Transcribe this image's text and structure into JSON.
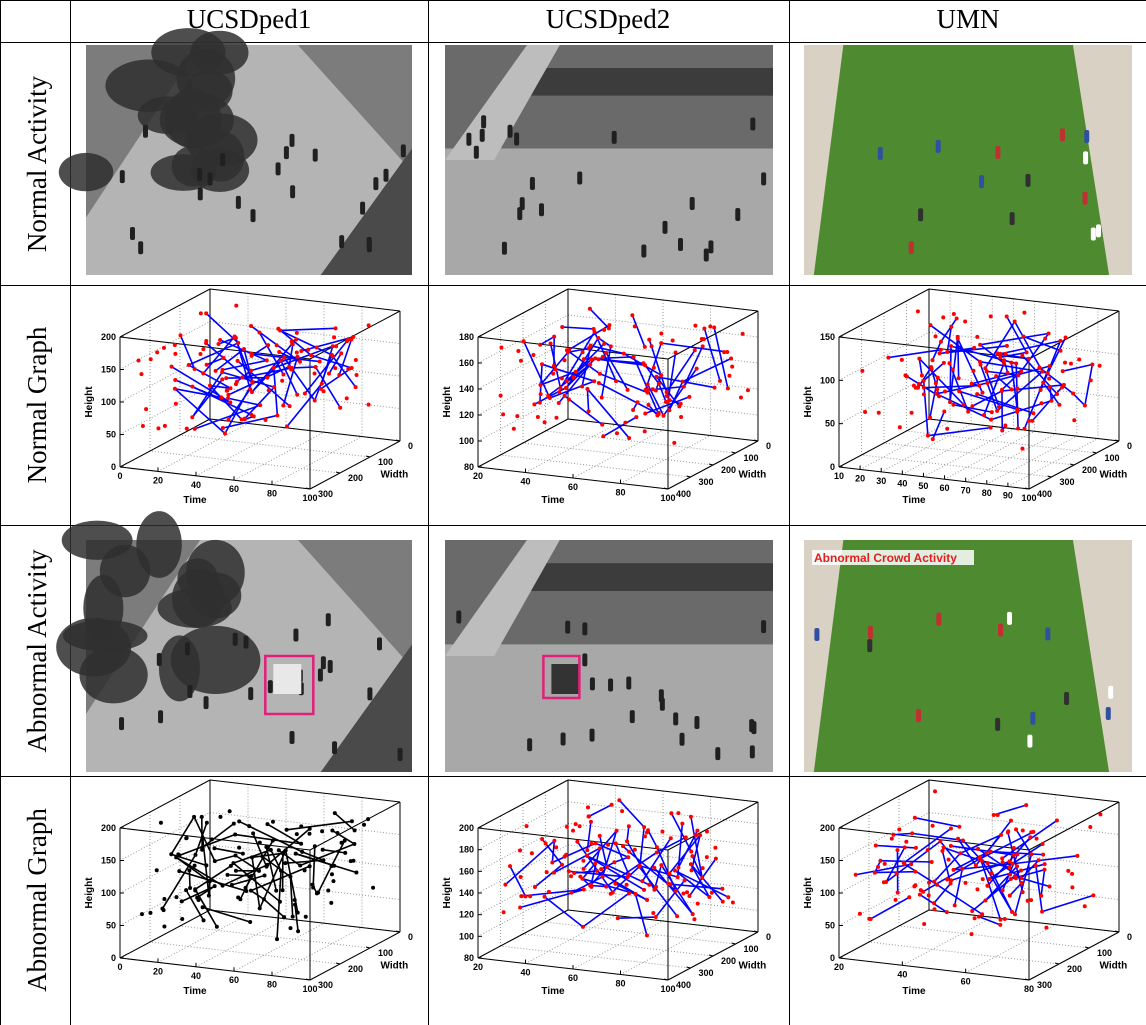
{
  "header": {
    "columns": [
      "UCSDped1",
      "UCSDped2",
      "UMN"
    ]
  },
  "rows": [
    "Normal Activity",
    "Normal Graph",
    "Abnormal Activity",
    "Abnormal Graph"
  ],
  "annotation": "Abnormal Crowd Activity",
  "graphs": {
    "normal": [
      {
        "x_label": "Time",
        "y_label": "Width",
        "z_label": "Height",
        "xticks": [
          0,
          20,
          40,
          60,
          80,
          100
        ],
        "yticks": [
          0,
          100,
          200,
          300
        ],
        "zticks": [
          0,
          50,
          100,
          150,
          200
        ],
        "point_color": "#ff0000",
        "line_color": "#0000ff"
      },
      {
        "x_label": "Time",
        "y_label": "Width",
        "z_label": "Height",
        "xticks": [
          20,
          40,
          60,
          80,
          100
        ],
        "yticks": [
          0,
          100,
          200,
          300,
          400
        ],
        "zticks": [
          80,
          100,
          120,
          140,
          160,
          180
        ],
        "point_color": "#ff0000",
        "line_color": "#0000ff"
      },
      {
        "x_label": "Time",
        "y_label": "Width",
        "z_label": "Height",
        "xticks": [
          10,
          20,
          30,
          40,
          50,
          60,
          70,
          80,
          90,
          100
        ],
        "yticks": [
          0,
          100,
          200,
          300,
          400
        ],
        "zticks": [
          0,
          50,
          100,
          150
        ],
        "point_color": "#ff0000",
        "line_color": "#0000ff"
      }
    ],
    "abnormal": [
      {
        "x_label": "Time",
        "y_label": "Width",
        "z_label": "Height",
        "xticks": [
          0,
          20,
          40,
          60,
          80,
          100
        ],
        "yticks": [
          0,
          100,
          200,
          300
        ],
        "zticks": [
          0,
          50,
          100,
          150,
          200
        ],
        "point_color": "#000000",
        "line_color": "#000000"
      },
      {
        "x_label": "Time",
        "y_label": "Width",
        "z_label": "Height",
        "xticks": [
          20,
          40,
          60,
          80,
          100
        ],
        "yticks": [
          0,
          100,
          200,
          300,
          400
        ],
        "zticks": [
          80,
          100,
          120,
          140,
          160,
          180,
          200
        ],
        "point_color": "#ff0000",
        "line_color": "#0000ff"
      },
      {
        "x_label": "Time",
        "y_label": "Width",
        "z_label": "Height",
        "xticks": [
          20,
          40,
          60,
          80
        ],
        "yticks": [
          0,
          100,
          200,
          300
        ],
        "zticks": [
          0,
          50,
          100,
          150,
          200
        ],
        "point_color": "#ff0000",
        "line_color": "#0000ff"
      }
    ]
  }
}
